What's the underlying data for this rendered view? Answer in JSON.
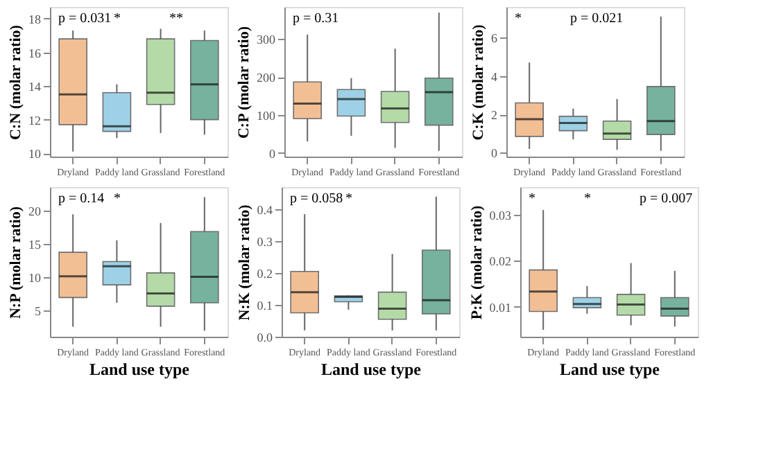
{
  "chart_data": [
    {
      "type": "box",
      "ylabel": "C:N (molar ratio)",
      "categories": [
        "Dryland",
        "Paddy land",
        "Grassland",
        "Forestland"
      ],
      "colors": [
        "#f0b483",
        "#8ec9e3",
        "#a7d49a",
        "#5fa58e"
      ],
      "ylim": [
        9.8,
        18.7
      ],
      "yticks": [
        10,
        12,
        14,
        16,
        18
      ],
      "annotations": [
        "p = 0.031",
        "*",
        "**"
      ],
      "boxes": [
        {
          "low": 10.1,
          "q1": 11.7,
          "median": 13.5,
          "q3": 16.8,
          "high": 17.3
        },
        {
          "low": 10.9,
          "q1": 11.3,
          "median": 11.6,
          "q3": 13.6,
          "high": 14.1
        },
        {
          "low": 11.2,
          "q1": 12.9,
          "median": 13.6,
          "q3": 16.8,
          "high": 17.4
        },
        {
          "low": 11.1,
          "q1": 12.0,
          "median": 14.1,
          "q3": 16.7,
          "high": 17.3
        }
      ]
    },
    {
      "type": "box",
      "ylabel": "C:P (molar ratio)",
      "categories": [
        "Dryland",
        "Paddy land",
        "Grassland",
        "Forestland"
      ],
      "colors": [
        "#f0b483",
        "#8ec9e3",
        "#a7d49a",
        "#5fa58e"
      ],
      "ylim": [
        -10,
        385
      ],
      "yticks": [
        0,
        100,
        200,
        300
      ],
      "annotations": [
        "p = 0.31"
      ],
      "boxes": [
        {
          "low": 30,
          "q1": 90,
          "median": 130,
          "q3": 187,
          "high": 312
        },
        {
          "low": 45,
          "q1": 97,
          "median": 142,
          "q3": 167,
          "high": 197
        },
        {
          "low": 13,
          "q1": 80,
          "median": 117,
          "q3": 162,
          "high": 275
        },
        {
          "low": 5,
          "q1": 73,
          "median": 160,
          "q3": 197,
          "high": 370
        }
      ]
    },
    {
      "type": "box",
      "ylabel": "C:K (molar ratio)",
      "categories": [
        "Dryland",
        "Paddy land",
        "Grassland",
        "Forestland"
      ],
      "colors": [
        "#f0b483",
        "#8ec9e3",
        "#a7d49a",
        "#5fa58e"
      ],
      "ylim": [
        -0.2,
        7.6
      ],
      "yticks": [
        0,
        2,
        4,
        6
      ],
      "annotations": [
        "*",
        "p = 0.021"
      ],
      "boxes": [
        {
          "low": 0.2,
          "q1": 0.85,
          "median": 1.75,
          "q3": 2.6,
          "high": 4.7
        },
        {
          "low": 0.7,
          "q1": 1.15,
          "median": 1.55,
          "q3": 1.9,
          "high": 2.3
        },
        {
          "low": 0.15,
          "q1": 0.7,
          "median": 1.0,
          "q3": 1.65,
          "high": 2.8
        },
        {
          "low": 0.1,
          "q1": 0.95,
          "median": 1.65,
          "q3": 3.45,
          "high": 7.1
        }
      ]
    },
    {
      "type": "box",
      "ylabel": "N:P (molar ratio)",
      "xlabel": "Land use type",
      "categories": [
        "Dryland",
        "Paddy land",
        "Grassland",
        "Forestland"
      ],
      "colors": [
        "#f0b483",
        "#8ec9e3",
        "#a7d49a",
        "#5fa58e"
      ],
      "ylim": [
        1,
        23.5
      ],
      "yticks": [
        5,
        10,
        15,
        20
      ],
      "annotations": [
        "p = 0.14",
        "*"
      ],
      "boxes": [
        {
          "low": 2.5,
          "q1": 6.9,
          "median": 10.1,
          "q3": 13.7,
          "high": 19.4
        },
        {
          "low": 6.1,
          "q1": 8.8,
          "median": 11.6,
          "q3": 12.3,
          "high": 15.5
        },
        {
          "low": 2.5,
          "q1": 5.6,
          "median": 7.5,
          "q3": 10.6,
          "high": 18.1
        },
        {
          "low": 1.9,
          "q1": 6.1,
          "median": 10.0,
          "q3": 16.8,
          "high": 22.0
        }
      ]
    },
    {
      "type": "box",
      "ylabel": "N:K (molar ratio)",
      "xlabel": "Land use type",
      "categories": [
        "Dryland",
        "Paddy land",
        "Grassland",
        "Forestland"
      ],
      "colors": [
        "#f0b483",
        "#8ec9e3",
        "#a7d49a",
        "#5fa58e"
      ],
      "ylim": [
        0,
        0.47
      ],
      "yticks": [
        {
          "value": 0,
          "label": "0.0"
        },
        0.1,
        0.2,
        0.3,
        0.4
      ],
      "annotations": [
        "p = 0.058",
        "*"
      ],
      "boxes": [
        {
          "low": 0.02,
          "q1": 0.075,
          "median": 0.14,
          "q3": 0.205,
          "high": 0.385
        },
        {
          "low": 0.085,
          "q1": 0.11,
          "median": 0.125,
          "q3": 0.128,
          "high": 0.13
        },
        {
          "low": 0.02,
          "q1": 0.055,
          "median": 0.088,
          "q3": 0.14,
          "high": 0.26
        },
        {
          "low": 0.02,
          "q1": 0.072,
          "median": 0.115,
          "q3": 0.272,
          "high": 0.44
        }
      ]
    },
    {
      "type": "box",
      "ylabel": "P:K (molar ratio)",
      "xlabel": "Land use type",
      "categories": [
        "Dryland",
        "Paddy land",
        "Grassland",
        "Forestland"
      ],
      "colors": [
        "#f0b483",
        "#8ec9e3",
        "#a7d49a",
        "#5fa58e"
      ],
      "ylim": [
        0.0035,
        0.036
      ],
      "yticks": [
        0.01,
        0.02,
        0.03
      ],
      "annotations": [
        "*",
        "*",
        "p = 0.007"
      ],
      "boxes": [
        {
          "low": 0.005,
          "q1": 0.009,
          "median": 0.0133,
          "q3": 0.018,
          "high": 0.031
        },
        {
          "low": 0.0085,
          "q1": 0.0098,
          "median": 0.0106,
          "q3": 0.012,
          "high": 0.0145
        },
        {
          "low": 0.006,
          "q1": 0.0082,
          "median": 0.0105,
          "q3": 0.0127,
          "high": 0.0195
        },
        {
          "low": 0.0057,
          "q1": 0.008,
          "median": 0.0096,
          "q3": 0.012,
          "high": 0.0178
        }
      ]
    }
  ]
}
